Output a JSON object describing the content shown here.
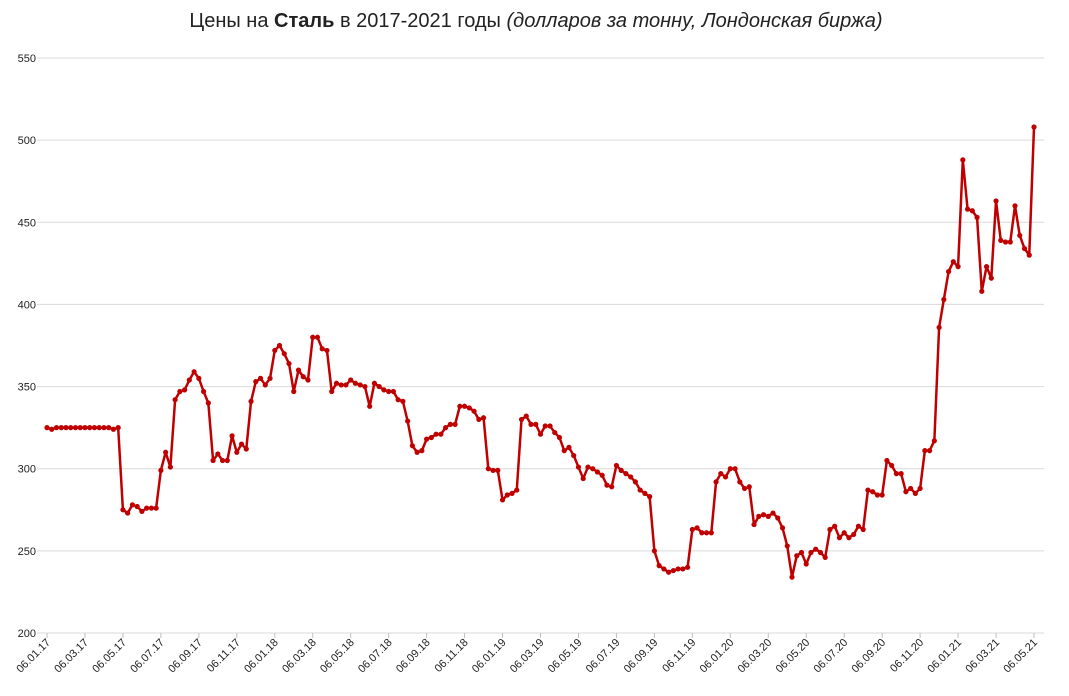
{
  "chart_data": {
    "type": "line",
    "title": {
      "prefix": "Цены на ",
      "bold": "Сталь",
      "middle": " в 2017-2021 годы ",
      "italic": "(долларов за тонну, Лондонская биржа)"
    },
    "categories": [
      "06.01.17",
      null,
      null,
      null,
      null,
      null,
      null,
      null,
      "06.03.17",
      null,
      null,
      null,
      null,
      null,
      null,
      null,
      "06.05.17",
      null,
      null,
      null,
      null,
      null,
      null,
      null,
      "06.07.17",
      null,
      null,
      null,
      null,
      null,
      null,
      null,
      "06.09.17",
      null,
      null,
      null,
      null,
      null,
      null,
      null,
      "06.11.17",
      null,
      null,
      null,
      null,
      null,
      null,
      null,
      "06.01.18",
      null,
      null,
      null,
      null,
      null,
      null,
      null,
      "06.03.18",
      null,
      null,
      null,
      null,
      null,
      null,
      null,
      "06.05.18",
      null,
      null,
      null,
      null,
      null,
      null,
      null,
      "06.07.18",
      null,
      null,
      null,
      null,
      null,
      null,
      null,
      "06.09.18",
      null,
      null,
      null,
      null,
      null,
      null,
      null,
      "06.11.18",
      null,
      null,
      null,
      null,
      null,
      null,
      null,
      "06.01.19",
      null,
      null,
      null,
      null,
      null,
      null,
      null,
      "06.03.19",
      null,
      null,
      null,
      null,
      null,
      null,
      null,
      "06.05.19",
      null,
      null,
      null,
      null,
      null,
      null,
      null,
      "06.07.19",
      null,
      null,
      null,
      null,
      null,
      null,
      null,
      "06.09.19",
      null,
      null,
      null,
      null,
      null,
      null,
      null,
      "06.11.19",
      null,
      null,
      null,
      null,
      null,
      null,
      null,
      "06.01.20",
      null,
      null,
      null,
      null,
      null,
      null,
      null,
      "06.03.20",
      null,
      null,
      null,
      null,
      null,
      null,
      null,
      "06.05.20",
      null,
      null,
      null,
      null,
      null,
      null,
      null,
      "06.07.20",
      null,
      null,
      null,
      null,
      null,
      null,
      null,
      "06.09.20",
      null,
      null,
      null,
      null,
      null,
      null,
      null,
      "06.11.20",
      null,
      null,
      null,
      null,
      null,
      null,
      null,
      "06.01.21",
      null,
      null,
      null,
      null,
      null,
      null,
      null,
      "06.03.21",
      null,
      null,
      null,
      null,
      null,
      null,
      null,
      "06.05.21"
    ],
    "series": [
      {
        "color": "#c00000",
        "values": [
          325,
          324,
          325,
          325,
          325,
          325,
          325,
          325,
          325,
          325,
          325,
          325,
          325,
          325,
          324,
          325,
          275,
          273,
          278,
          277,
          274,
          276,
          276,
          276,
          299,
          310,
          301,
          342,
          347,
          348,
          354,
          359,
          355,
          347,
          340,
          305,
          309,
          305,
          305,
          320,
          310,
          315,
          312,
          341,
          353,
          355,
          351,
          355,
          372,
          375,
          370,
          364,
          347,
          360,
          356,
          354,
          380,
          380,
          373,
          372,
          347,
          352,
          351,
          351,
          354,
          352,
          351,
          350,
          338,
          352,
          350,
          348,
          347,
          347,
          342,
          341,
          329,
          314,
          310,
          311,
          318,
          319,
          321,
          321,
          325,
          327,
          327,
          338,
          338,
          337,
          335,
          330,
          331,
          300,
          299,
          299,
          281,
          284,
          285,
          287,
          330,
          332,
          327,
          327,
          321,
          326,
          326,
          322,
          319,
          311,
          313,
          308,
          301,
          294,
          301,
          300,
          298,
          296,
          290,
          289,
          302,
          299,
          297,
          295,
          292,
          287,
          285,
          283,
          250,
          241,
          239,
          237,
          238,
          239,
          239,
          240,
          263,
          264,
          261,
          261,
          261,
          292,
          297,
          295,
          300,
          300,
          292,
          288,
          289,
          266,
          271,
          272,
          271,
          273,
          270,
          264,
          253,
          234,
          247,
          249,
          242,
          249,
          251,
          249,
          246,
          263,
          265,
          258,
          261,
          258,
          260,
          265,
          263,
          287,
          286,
          284,
          284,
          305,
          302,
          297,
          297,
          286,
          288,
          285,
          288,
          311,
          311,
          317,
          386,
          403,
          420,
          426,
          423,
          488,
          458,
          457,
          453,
          408,
          423,
          416,
          463,
          439,
          438,
          438,
          460,
          442,
          434,
          430,
          508
        ]
      }
    ],
    "ylim": [
      200,
      550
    ],
    "yticks": [
      200,
      250,
      300,
      350,
      400,
      450,
      500,
      550
    ],
    "grid": true
  }
}
